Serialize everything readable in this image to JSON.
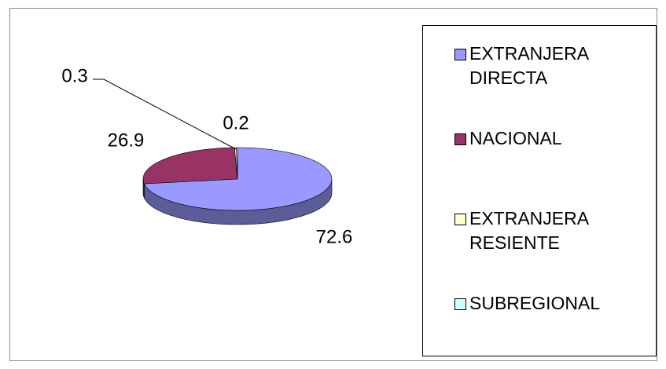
{
  "chart_data": {
    "type": "pie",
    "categories": [
      "EXTRANJERA DIRECTA",
      "NACIONAL",
      "EXTRANJERA RESIENTE",
      "SUBREGIONAL"
    ],
    "values": [
      72.6,
      26.9,
      0.3,
      0.2
    ],
    "colors": [
      "#9999ff",
      "#993366",
      "#ffffcc",
      "#ccffff"
    ],
    "legend": "right"
  }
}
